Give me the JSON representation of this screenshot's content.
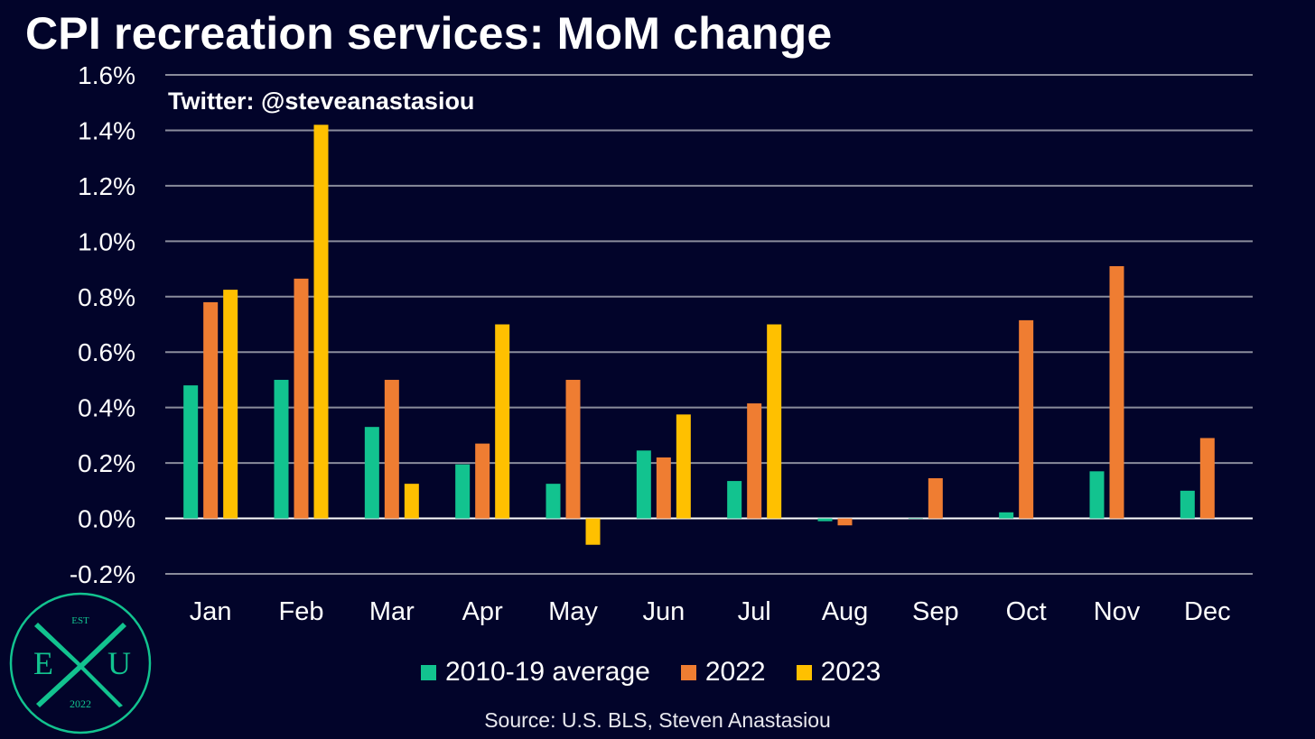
{
  "chart_data": {
    "type": "bar",
    "title": "CPI recreation services: MoM change",
    "watermark": "Twitter: @steveanastasiou",
    "source": "Source: U.S. BLS, Steven Anastasiou",
    "categories": [
      "Jan",
      "Feb",
      "Mar",
      "Apr",
      "May",
      "Jun",
      "Jul",
      "Aug",
      "Sep",
      "Oct",
      "Nov",
      "Dec"
    ],
    "series": [
      {
        "name": "2010-19 average",
        "color": "#12c38f",
        "values": [
          0.48,
          0.5,
          0.33,
          0.195,
          0.125,
          0.245,
          0.135,
          -0.01,
          0.0,
          0.022,
          0.17,
          0.1
        ]
      },
      {
        "name": "2022",
        "color": "#ef7d32",
        "values": [
          0.78,
          0.865,
          0.5,
          0.27,
          0.5,
          0.22,
          0.415,
          -0.025,
          0.145,
          0.715,
          0.91,
          0.29
        ]
      },
      {
        "name": "2023",
        "color": "#ffc000",
        "values": [
          0.825,
          1.42,
          0.125,
          0.7,
          -0.095,
          0.375,
          0.7,
          null,
          null,
          null,
          null,
          null
        ]
      }
    ],
    "ylim": [
      -0.2,
      1.6
    ],
    "yticks": [
      -0.2,
      0.0,
      0.2,
      0.4,
      0.6,
      0.8,
      1.0,
      1.2,
      1.4,
      1.6
    ],
    "ytick_labels": [
      "-0.2%",
      "0.0%",
      "0.2%",
      "0.4%",
      "0.6%",
      "0.8%",
      "1.0%",
      "1.2%",
      "1.4%",
      "1.6%"
    ],
    "xlabel": "",
    "ylabel": "",
    "grid": true,
    "legend_position": "bottom"
  },
  "logo": {
    "top_text": "EST",
    "left_letter": "E",
    "center_letter": "X",
    "right_letter": "U",
    "bottom_text": "2022",
    "color": "#12c38f"
  }
}
